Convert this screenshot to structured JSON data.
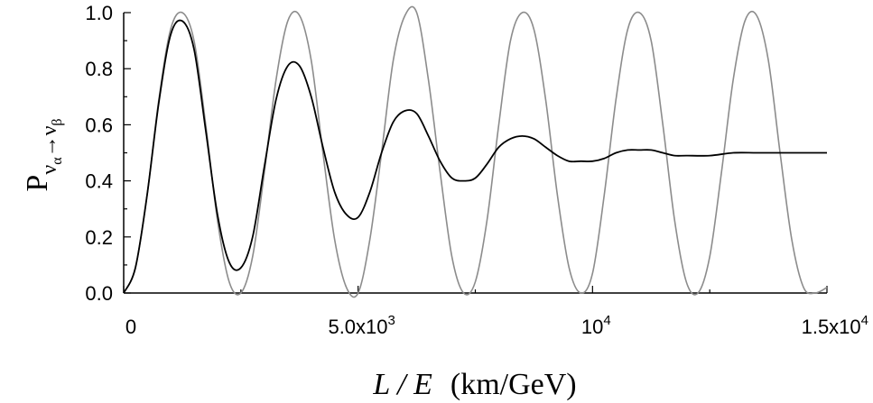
{
  "chart_data": {
    "type": "line",
    "xlabel_var": "L / E",
    "xlabel_unit": "(km/GeV)",
    "ylabel_main": "P",
    "ylabel_sub1": "ν",
    "ylabel_sub1_sub": "α",
    "ylabel_arrow": "→",
    "ylabel_sub2": "ν",
    "ylabel_sub2_sub": "β",
    "xlim": [
      0,
      15000
    ],
    "ylim": [
      0,
      1
    ],
    "y_ticks": [
      0,
      0.2,
      0.4,
      0.6,
      0.8,
      1.0
    ],
    "y_tick_labels": [
      "0.0",
      "0.2",
      "0.4",
      "0.6",
      "0.8",
      "1.0"
    ],
    "x_ticks": [
      0,
      5000,
      10000,
      15000
    ],
    "x_tick_labels": [
      {
        "base": "0",
        "exp": ""
      },
      {
        "base": "5.0x10",
        "exp": "3"
      },
      {
        "base": "10",
        "exp": "4"
      },
      {
        "base": "1.5x10",
        "exp": "4"
      }
    ],
    "grid": false,
    "series": [
      {
        "color": "#8c8c8c",
        "points": [
          [
            0,
            0
          ],
          [
            250,
            0.09
          ],
          [
            500,
            0.35
          ],
          [
            750,
            0.69
          ],
          [
            1000,
            0.94
          ],
          [
            1250,
            1.0
          ],
          [
            1500,
            0.9
          ],
          [
            1750,
            0.6
          ],
          [
            2000,
            0.26
          ],
          [
            2250,
            0.04
          ],
          [
            2500,
            0.0
          ],
          [
            2750,
            0.13
          ],
          [
            3000,
            0.43
          ],
          [
            3250,
            0.76
          ],
          [
            3500,
            0.97
          ],
          [
            3750,
            0.99
          ],
          [
            4000,
            0.83
          ],
          [
            4250,
            0.5
          ],
          [
            4500,
            0.19
          ],
          [
            4750,
            0.02
          ],
          [
            5000,
            0.0
          ],
          [
            5250,
            0.19
          ],
          [
            5500,
            0.5
          ],
          [
            5750,
            0.83
          ],
          [
            6000,
            0.99
          ],
          [
            6250,
            1.0
          ],
          [
            6500,
            0.76
          ],
          [
            6750,
            0.43
          ],
          [
            7000,
            0.13
          ],
          [
            7250,
            0.0
          ],
          [
            7500,
            0.04
          ],
          [
            7750,
            0.26
          ],
          [
            8000,
            0.6
          ],
          [
            8250,
            0.9
          ],
          [
            8500,
            1.0
          ],
          [
            8750,
            0.94
          ],
          [
            9000,
            0.69
          ],
          [
            9250,
            0.35
          ],
          [
            9500,
            0.09
          ],
          [
            9750,
            0.0
          ],
          [
            10000,
            0.07
          ],
          [
            10250,
            0.35
          ],
          [
            10500,
            0.69
          ],
          [
            10750,
            0.94
          ],
          [
            11000,
            1.0
          ],
          [
            11250,
            0.9
          ],
          [
            11500,
            0.6
          ],
          [
            11750,
            0.26
          ],
          [
            12000,
            0.04
          ],
          [
            12250,
            0.0
          ],
          [
            12500,
            0.13
          ],
          [
            12750,
            0.43
          ],
          [
            13000,
            0.76
          ],
          [
            13250,
            0.97
          ],
          [
            13500,
            0.99
          ],
          [
            13750,
            0.83
          ],
          [
            14000,
            0.5
          ],
          [
            14250,
            0.19
          ],
          [
            14500,
            0.02
          ],
          [
            14750,
            0.0
          ],
          [
            15000,
            0.02
          ]
        ]
      },
      {
        "color": "#000000",
        "points": [
          [
            0,
            0
          ],
          [
            250,
            0.09
          ],
          [
            500,
            0.35
          ],
          [
            750,
            0.68
          ],
          [
            1000,
            0.92
          ],
          [
            1250,
            0.97
          ],
          [
            1500,
            0.87
          ],
          [
            1750,
            0.58
          ],
          [
            2000,
            0.28
          ],
          [
            2250,
            0.11
          ],
          [
            2500,
            0.09
          ],
          [
            2750,
            0.2
          ],
          [
            3000,
            0.45
          ],
          [
            3250,
            0.69
          ],
          [
            3500,
            0.81
          ],
          [
            3750,
            0.81
          ],
          [
            4000,
            0.7
          ],
          [
            4250,
            0.52
          ],
          [
            4500,
            0.36
          ],
          [
            4750,
            0.28
          ],
          [
            5000,
            0.27
          ],
          [
            5250,
            0.36
          ],
          [
            5500,
            0.5
          ],
          [
            5750,
            0.61
          ],
          [
            6000,
            0.65
          ],
          [
            6250,
            0.64
          ],
          [
            6500,
            0.56
          ],
          [
            6750,
            0.47
          ],
          [
            7000,
            0.41
          ],
          [
            7250,
            0.4
          ],
          [
            7500,
            0.41
          ],
          [
            7750,
            0.46
          ],
          [
            8000,
            0.52
          ],
          [
            8250,
            0.55
          ],
          [
            8500,
            0.56
          ],
          [
            8750,
            0.55
          ],
          [
            9000,
            0.52
          ],
          [
            9250,
            0.49
          ],
          [
            9500,
            0.47
          ],
          [
            9750,
            0.47
          ],
          [
            10000,
            0.47
          ],
          [
            10250,
            0.48
          ],
          [
            10500,
            0.5
          ],
          [
            10750,
            0.51
          ],
          [
            11000,
            0.51
          ],
          [
            11250,
            0.51
          ],
          [
            11500,
            0.5
          ],
          [
            11750,
            0.49
          ],
          [
            12000,
            0.49
          ],
          [
            12500,
            0.49
          ],
          [
            13000,
            0.5
          ],
          [
            13500,
            0.5
          ],
          [
            14000,
            0.5
          ],
          [
            14500,
            0.5
          ],
          [
            15000,
            0.5
          ]
        ]
      }
    ]
  }
}
